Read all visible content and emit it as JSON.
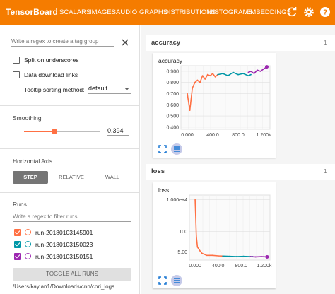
{
  "topbar": {
    "brand": "TensorBoard",
    "tabs": [
      "SCALARS",
      "IMAGES",
      "AUDIO",
      "GRAPHS",
      "DISTRIBUTIONS",
      "HISTOGRAMS",
      "EMBEDDINGS"
    ],
    "active_tab": "SCALARS",
    "icons": [
      "refresh-icon",
      "settings-icon",
      "help-icon"
    ],
    "bg_color": "#f57c00"
  },
  "sidebar": {
    "tag_regex_placeholder": "Write a regex to create a tag group",
    "split_label": "Split on underscores",
    "download_label": "Data download links",
    "tooltip_label": "Tooltip sorting method:",
    "tooltip_value": "default",
    "smoothing_title": "Smoothing",
    "smoothing_value": "0.394",
    "smoothing_fraction": 0.394,
    "horizontal_axis_title": "Horizontal Axis",
    "axis_buttons": [
      "STEP",
      "RELATIVE",
      "WALL"
    ],
    "axis_active": "STEP",
    "runs_title": "Runs",
    "runs_regex_placeholder": "Write a regex to filter runs",
    "runs": [
      {
        "name": "run-20180103145901",
        "color": "#ff7043"
      },
      {
        "name": "run-20180103150023",
        "color": "#0097a7"
      },
      {
        "name": "run-20180103150151",
        "color": "#9c27b0"
      }
    ],
    "toggle_all": "TOGGLE ALL RUNS",
    "logdir": "/Users/kaylan1/Downloads/cnn/cori_logs"
  },
  "groups": [
    {
      "title": "accuracy",
      "count": "1",
      "card_title": "accuracy"
    },
    {
      "title": "loss",
      "count": "1",
      "card_title": "loss"
    }
  ],
  "chart_data": [
    {
      "type": "line",
      "title": "accuracy",
      "x_ticks": [
        "0.000",
        "400.0",
        "800.0",
        "1.200k"
      ],
      "y_ticks": [
        "0.400",
        "0.500",
        "0.600",
        "0.700",
        "0.800",
        "0.900"
      ],
      "xlim": [
        -100,
        1300
      ],
      "ylim": [
        0.38,
        0.95
      ],
      "series": [
        {
          "name": "run-20180103145901",
          "color": "#ff7043",
          "x": [
            0,
            40,
            80,
            120,
            160,
            200,
            240,
            280,
            320,
            360,
            400,
            440,
            480
          ],
          "y": [
            0.7,
            0.55,
            0.75,
            0.8,
            0.82,
            0.8,
            0.86,
            0.83,
            0.87,
            0.86,
            0.88,
            0.85,
            0.87
          ]
        },
        {
          "name": "run-20180103150023",
          "color": "#0097a7",
          "x": [
            480,
            560,
            640,
            720,
            800,
            880,
            960,
            1000
          ],
          "y": [
            0.87,
            0.88,
            0.86,
            0.89,
            0.87,
            0.88,
            0.86,
            0.87
          ]
        },
        {
          "name": "run-20180103150151",
          "color": "#9c27b0",
          "x": [
            960,
            1000,
            1050,
            1100,
            1150,
            1200,
            1250
          ],
          "y": [
            0.89,
            0.9,
            0.88,
            0.91,
            0.9,
            0.92,
            0.94
          ]
        }
      ]
    },
    {
      "type": "line",
      "title": "loss",
      "x_ticks": [
        "0.000",
        "400.0",
        "800.0",
        "1.200k"
      ],
      "y_ticks": [
        "5.00",
        "100",
        "1.000e+4"
      ],
      "xlim": [
        -100,
        1300
      ],
      "y_scale": "log",
      "ylim": [
        1.5,
        20000
      ],
      "series": [
        {
          "name": "run-20180103145901",
          "color": "#ff7043",
          "x": [
            0,
            20,
            40,
            80,
            120,
            160,
            200,
            300,
            400,
            480
          ],
          "y": [
            10000,
            50,
            10,
            6,
            4,
            3.5,
            3,
            3,
            2.8,
            2.7
          ]
        },
        {
          "name": "run-20180103150023",
          "color": "#0097a7",
          "x": [
            480,
            600,
            720,
            840,
            960,
            1000
          ],
          "y": [
            2.7,
            2.6,
            2.5,
            2.6,
            2.5,
            2.5
          ]
        },
        {
          "name": "run-20180103150151",
          "color": "#9c27b0",
          "x": [
            960,
            1050,
            1150,
            1250
          ],
          "y": [
            2.5,
            2.4,
            2.5,
            2.4
          ]
        }
      ]
    }
  ]
}
